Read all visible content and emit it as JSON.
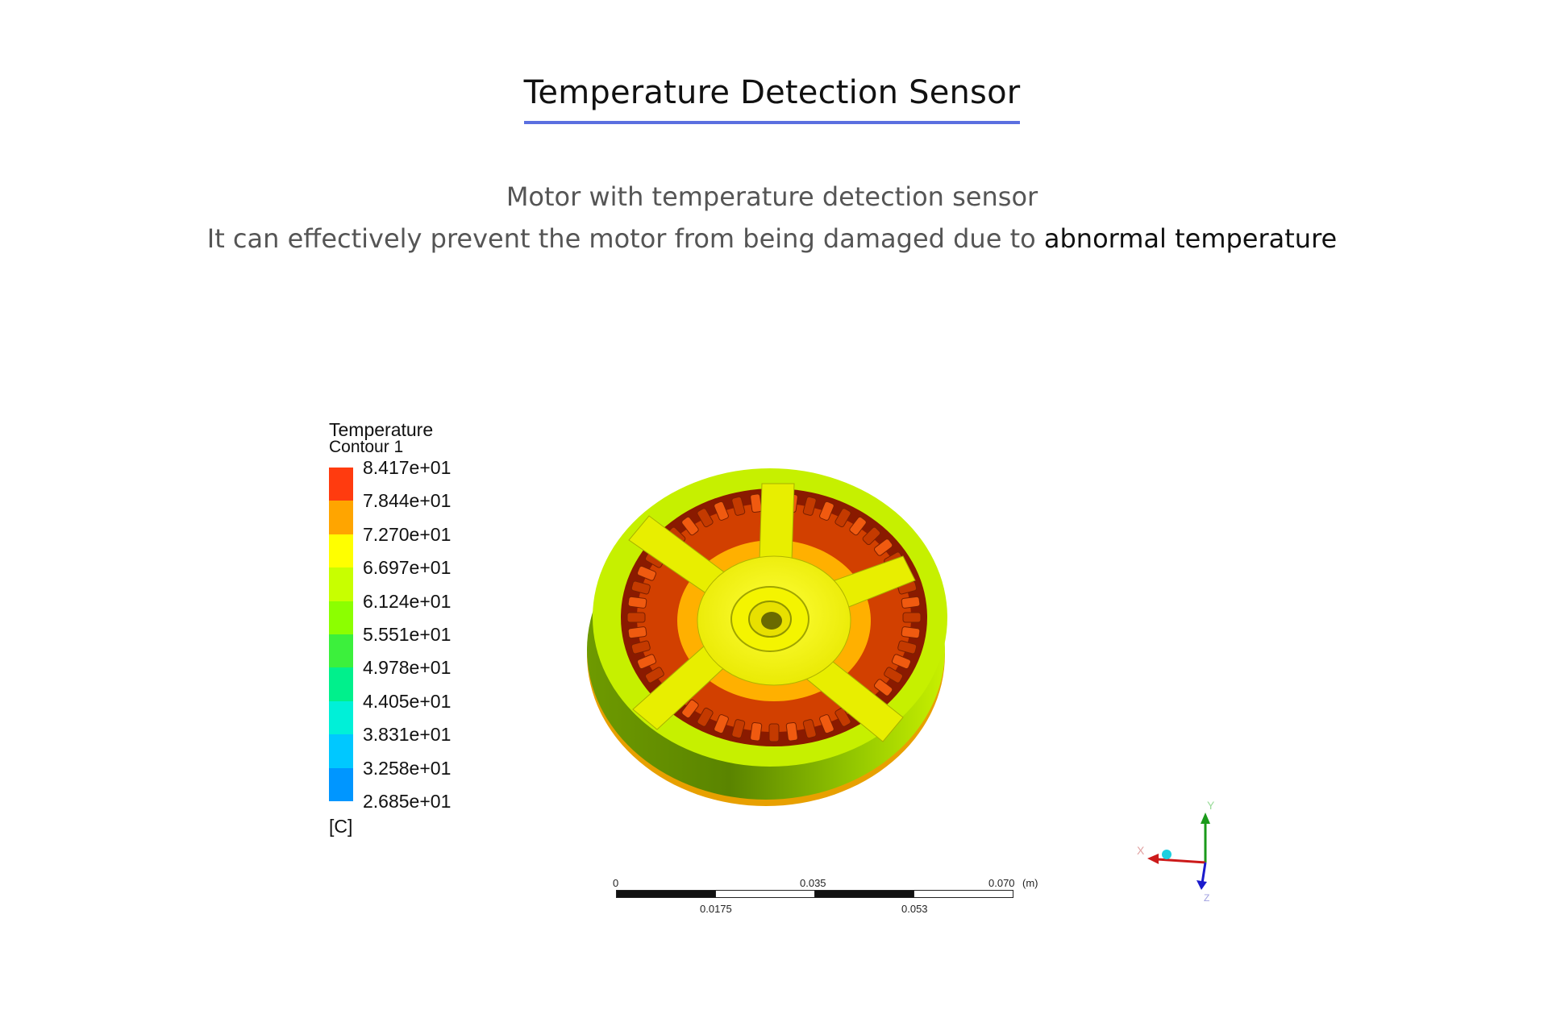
{
  "heading": "Temperature Detection Sensor",
  "subtitle_line1": "Motor with temperature detection sensor",
  "subtitle_line2_prefix": "It can effectively prevent the motor from being damaged due to ",
  "subtitle_line2_highlight": "abnormal temperature",
  "accent_color": "#5b6fe0",
  "legend": {
    "title": "Temperature",
    "subtitle": "Contour 1",
    "values": [
      "8.417e+01",
      "7.844e+01",
      "7.270e+01",
      "6.697e+01",
      "6.124e+01",
      "5.551e+01",
      "4.978e+01",
      "4.405e+01",
      "3.831e+01",
      "3.258e+01",
      "2.685e+01"
    ],
    "colors": [
      "#ff3b0f",
      "#ffa500",
      "#ffff00",
      "#c8ff00",
      "#8cff00",
      "#3cf03c",
      "#00f08c",
      "#00f0d8",
      "#00c8ff",
      "#0096ff",
      "#1432ff"
    ],
    "unit": "[C]"
  },
  "scale_bar": {
    "top_labels": [
      "0",
      "0.035",
      "0.070",
      "(m)"
    ],
    "bottom_labels": [
      "0.0175",
      "0.053"
    ]
  },
  "axes": {
    "x_label": "X",
    "y_label": "Y",
    "z_label": "Z"
  }
}
